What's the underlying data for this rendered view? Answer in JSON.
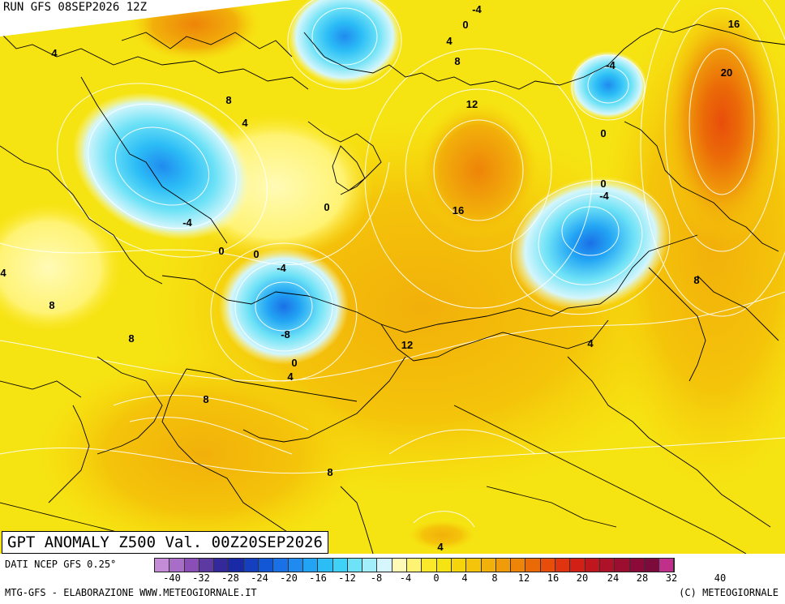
{
  "run_label": "RUN GFS 08SEP2026 12Z",
  "title": "GPT ANOMALY Z500 Val. 00Z20SEP2026",
  "data_source": "DATI NCEP GFS 0.25°",
  "credit_left": "MTG-GFS - ELABORAZIONE WWW.METEOGIORNALE.IT",
  "credit_right": "(C) METEOGIORNALE",
  "colors": {
    "base": "#f6e312",
    "contour_line": "#ffffff",
    "border_line": "#000000"
  },
  "scale": {
    "ticks": [
      "-40",
      "-32",
      "-28",
      "-24",
      "-20",
      "-16",
      "-12",
      "-8",
      "-4",
      "0",
      "4",
      "8",
      "12",
      "16",
      "20",
      "24",
      "28",
      "32",
      "40"
    ],
    "colors": [
      "#c48bd6",
      "#a86dc6",
      "#8a4fb6",
      "#5c3aa2",
      "#34299a",
      "#1a2aa6",
      "#1440c0",
      "#1258d6",
      "#1a70e6",
      "#1f8bef",
      "#22a4f4",
      "#2cbdf6",
      "#40d2f6",
      "#6ee2f6",
      "#a2eefa",
      "#d4f6fc",
      "#fffbb6",
      "#fff374",
      "#fbe82a",
      "#f6e312",
      "#f6d40c",
      "#f4c40a",
      "#f2b00a",
      "#f09c0a",
      "#ee8408",
      "#eb6a08",
      "#e84e0a",
      "#e03410",
      "#d22016",
      "#c0161e",
      "#ae1228",
      "#9c0e30",
      "#8c0a38",
      "#7c0a3a",
      "#c0308a"
    ]
  },
  "contour_labels": [
    {
      "text": "-4",
      "pos": "north-atlantic-top"
    },
    {
      "text": "0",
      "pos": "north-top"
    },
    {
      "text": "4",
      "pos": "kara-sea"
    },
    {
      "text": "8",
      "pos": "laptev-sea"
    },
    {
      "text": "12",
      "pos": "east-siberian-sea"
    },
    {
      "text": "-4",
      "pos": "chukotka"
    },
    {
      "text": "0",
      "pos": "bering"
    },
    {
      "text": "16",
      "pos": "alaska-north"
    },
    {
      "text": "20",
      "pos": "alaska"
    },
    {
      "text": "4",
      "pos": "greenland"
    },
    {
      "text": "8",
      "pos": "scandinavia-north"
    },
    {
      "text": "4",
      "pos": "barents"
    },
    {
      "text": "0",
      "pos": "svalbard-south"
    },
    {
      "text": "-4",
      "pos": "scandinavia-low"
    },
    {
      "text": "16",
      "pos": "siberia-high"
    },
    {
      "text": "0",
      "pos": "kamchatka"
    },
    {
      "text": "-4",
      "pos": "okhotsk"
    },
    {
      "text": "0",
      "pos": "russia-west-a"
    },
    {
      "text": "0",
      "pos": "russia-west-b"
    },
    {
      "text": "-4",
      "pos": "kazakh-north"
    },
    {
      "text": "-8",
      "pos": "kazakh-low"
    },
    {
      "text": "0",
      "pos": "kazakh-south"
    },
    {
      "text": "4",
      "pos": "caspian-east"
    },
    {
      "text": "12",
      "pos": "mongolia"
    },
    {
      "text": "4",
      "pos": "china-north"
    },
    {
      "text": "8",
      "pos": "japan"
    },
    {
      "text": "8",
      "pos": "europe-west"
    },
    {
      "text": "8",
      "pos": "black-sea"
    },
    {
      "text": "4",
      "pos": "iberia-edge"
    },
    {
      "text": "8",
      "pos": "iran"
    },
    {
      "text": "8",
      "pos": "india-north"
    },
    {
      "text": "4",
      "pos": "india-south"
    }
  ]
}
